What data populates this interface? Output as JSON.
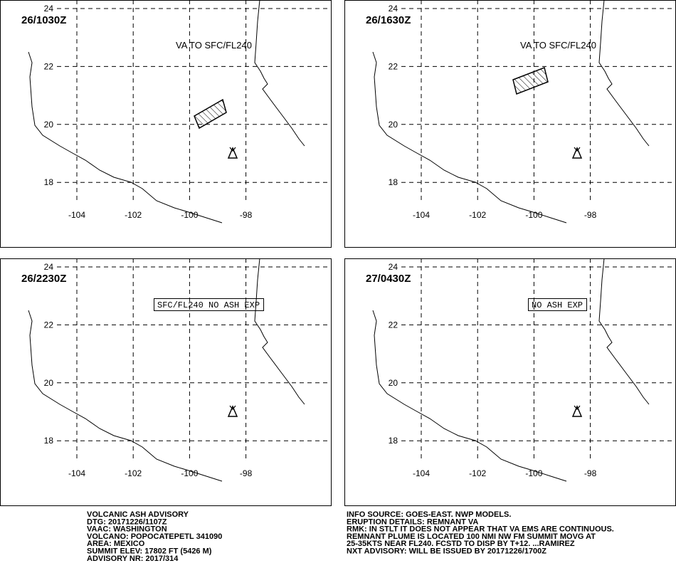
{
  "panels": [
    {
      "time": "26/1030Z",
      "annotation": "VA TO SFC/FL240",
      "boxed": false
    },
    {
      "time": "26/1630Z",
      "annotation": "VA TO SFC/FL240",
      "boxed": false
    },
    {
      "time": "26/2230Z",
      "annotation": "SFC/FL240 NO ASH EXP",
      "boxed": true
    },
    {
      "time": "27/0430Z",
      "annotation": "NO ASH EXP",
      "boxed": true
    }
  ],
  "map": {
    "lat_ticks": [
      24,
      22,
      20,
      18
    ],
    "lon_ticks": [
      -104,
      -102,
      -100,
      -98
    ]
  },
  "advisory_left": [
    "VOLCANIC ASH ADVISORY",
    "DTG: 20171226/1107Z",
    "VAAC: WASHINGTON",
    "VOLCANO: POPOCATEPETL 341090",
    "AREA: MEXICO",
    "SUMMIT ELEV: 17802 FT (5426 M)",
    "ADVISORY NR: 2017/314"
  ],
  "advisory_right": [
    "INFO SOURCE: GOES-EAST. NWP MODELS.",
    "ERUPTION DETAILS: REMNANT VA",
    "RMK: IN STLT IT DOES NOT APPEAR THAT VA EMS ARE CONTINUOUS.",
    "REMNANT PLUME IS LOCATED 100 NMI NW FM SUMMIT MOVG AT",
    "25-35KTS NEAR FL240. FCSTD TO DISP BY T+12. ...RAMIREZ",
    "NXT ADVISORY: WILL BE ISSUED BY 20171226/1700Z"
  ]
}
